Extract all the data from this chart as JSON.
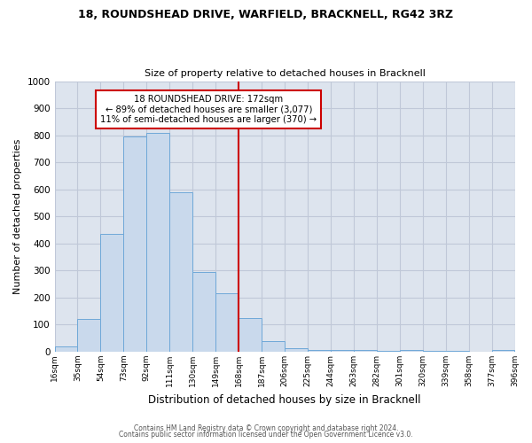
{
  "title_line1": "18, ROUNDSHEAD DRIVE, WARFIELD, BRACKNELL, RG42 3RZ",
  "title_line2": "Size of property relative to detached houses in Bracknell",
  "xlabel": "Distribution of detached houses by size in Bracknell",
  "ylabel": "Number of detached properties",
  "bin_edges": [
    16,
    35,
    54,
    73,
    92,
    111,
    130,
    149,
    168,
    187,
    206,
    225,
    244,
    263,
    282,
    301,
    320,
    339,
    358,
    377,
    396
  ],
  "bin_labels": [
    "16sqm",
    "35sqm",
    "54sqm",
    "73sqm",
    "92sqm",
    "111sqm",
    "130sqm",
    "149sqm",
    "168sqm",
    "187sqm",
    "206sqm",
    "225sqm",
    "244sqm",
    "263sqm",
    "282sqm",
    "301sqm",
    "320sqm",
    "339sqm",
    "358sqm",
    "377sqm",
    "396sqm"
  ],
  "bar_heights": [
    20,
    120,
    435,
    795,
    810,
    590,
    295,
    215,
    125,
    40,
    13,
    8,
    5,
    5,
    2,
    5,
    2,
    2,
    0,
    8
  ],
  "bar_color": "#c9d9ec",
  "bar_edge_color": "#6fa8d8",
  "vline_x": 168,
  "vline_color": "#cc0000",
  "annotation_title": "18 ROUNDSHEAD DRIVE: 172sqm",
  "annotation_line1": "← 89% of detached houses are smaller (3,077)",
  "annotation_line2": "11% of semi-detached houses are larger (370) →",
  "annotation_box_facecolor": "#ffffff",
  "annotation_box_edgecolor": "#cc0000",
  "ylim": [
    0,
    1000
  ],
  "yticks": [
    0,
    100,
    200,
    300,
    400,
    500,
    600,
    700,
    800,
    900,
    1000
  ],
  "grid_color": "#c0c8d8",
  "plot_bg_color": "#dde4ee",
  "fig_bg_color": "#ffffff",
  "footer_line1": "Contains HM Land Registry data © Crown copyright and database right 2024.",
  "footer_line2": "Contains public sector information licensed under the Open Government Licence v3.0."
}
